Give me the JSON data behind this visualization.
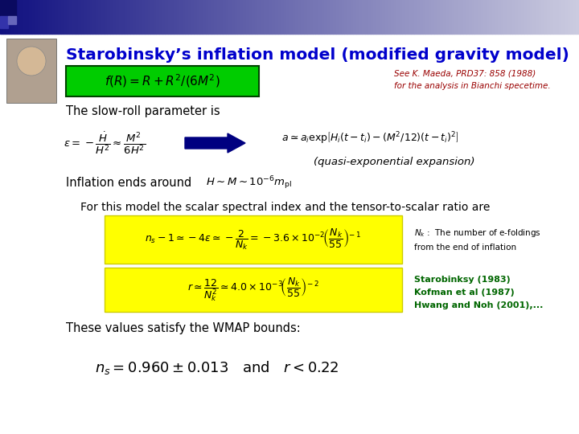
{
  "title": "Starobinsky’s inflation model (modified gravity model)",
  "title_color": "#0000CC",
  "bg_color": "#FFFFFF",
  "see_text_line1": "See K. Maeda, PRD37: 858 (1988)",
  "see_text_line2": "for the analysis in Bianchi specetime.",
  "see_text_color": "#990000",
  "slow_roll_text": "The slow-roll parameter is",
  "quasi_text": "(quasi-exponential expansion)",
  "inflation_text": "Inflation ends around",
  "spectral_text": "For this model the scalar spectral index and the tensor-to-scalar ratio are",
  "refs_line1": "Starobinksy (1983)",
  "refs_line2": "Kofman et al (1987)",
  "refs_line3": "Hwang and Noh (2001),...",
  "refs_color": "#006600",
  "wmap_text": "These values satisfy the WMAP bounds:",
  "yellow_bg": "#FFFF00",
  "green_bg": "#00CC00",
  "arrow_color": "#000080",
  "box1_formula": "$f(R) = R + R^2/(6M^2)$",
  "slow_roll_lhs": "$\\epsilon = -\\dfrac{\\dot{H}}{H^2} \\approx \\dfrac{M^2}{6H^2}$",
  "slow_roll_rhs": "$a \\simeq a_i \\exp\\!\\left[H_i(t-t_i) - (M^2/12)(t-t_i)^2\\right]$",
  "inflation_formula": "$H \\sim M \\sim 10^{-6}m_{\\rm pl}$",
  "ns_formula": "$n_s - 1 \\simeq -4\\epsilon \\simeq -\\dfrac{2}{N_k} = -3.6\\times10^{-2}\\!\\left(\\dfrac{N_k}{55}\\right)^{\\!-1}$",
  "r_formula": "$r \\simeq \\dfrac{12}{N_k^2} \\simeq 4.0\\times10^{-3}\\!\\left(\\dfrac{N_k}{55}\\right)^{\\!-2}$",
  "wmap_formula": "$n_s = 0.960 \\pm 0.013 \\quad {\\rm and} \\quad r < 0.22$",
  "nk_note": "$N_k$ :  The number of e-foldings",
  "nk_note2": "from the end of inflation"
}
